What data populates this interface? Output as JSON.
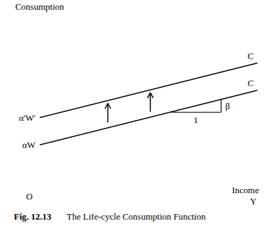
{
  "chart_data": {
    "type": "line",
    "title": "The Life-cycle Consumption Function",
    "figure_label": "Fig. 12.13",
    "y_label": "Consumption",
    "x_label": "Income",
    "x_symbol": "Y",
    "origin_label": "O",
    "x": [
      0,
      11.8
    ],
    "xlim": [
      0,
      12
    ],
    "ylim": [
      0,
      10
    ],
    "tick_labels": false,
    "grid": false,
    "series": [
      {
        "name": "C",
        "color": "#000000",
        "values": [
          2.8,
          5.8
        ],
        "intercept_label": "αW"
      },
      {
        "name": "C",
        "color": "#000000",
        "values": [
          4.3,
          7.3
        ],
        "intercept_label": "α'W'"
      }
    ],
    "annotations": {
      "run": "1",
      "rise": "β"
    }
  }
}
